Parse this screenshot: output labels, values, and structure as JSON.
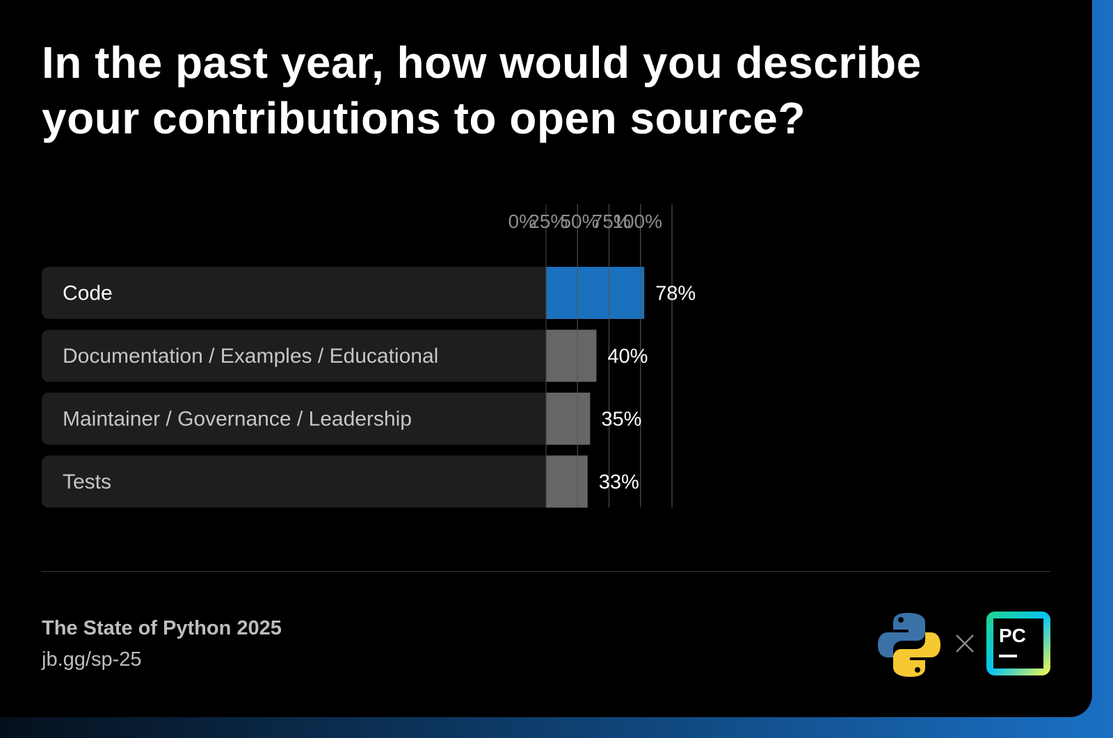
{
  "title": "In the past year, how would you describe your contributions to open source?",
  "footer": {
    "source_title": "The State of Python 2025",
    "link": "jb.gg/sp-25"
  },
  "logos": {
    "left_icon": "python-logo-icon",
    "separator_icon": "times-icon",
    "right_icon": "pycharm-logo-icon",
    "right_text": "PC"
  },
  "colors": {
    "background": "#000000",
    "highlight_bar": "#1a71bd",
    "default_bar": "#666666",
    "label_track": "#1e1e1e"
  },
  "chart_data": {
    "type": "bar",
    "orientation": "horizontal",
    "categories": [
      "Code",
      "Documentation / Examples / Educational",
      "Maintainer / Governance / Leadership",
      "Tests"
    ],
    "values": [
      78,
      40,
      35,
      33
    ],
    "value_labels": [
      "78%",
      "40%",
      "35%",
      "33%"
    ],
    "highlight_index": 0,
    "xticks": [
      "0%",
      "25%",
      "50%",
      "75%",
      "100%"
    ],
    "xtick_values": [
      0,
      25,
      50,
      75,
      100
    ],
    "xlim": [
      0,
      100
    ],
    "grid": true,
    "xlabel": "",
    "ylabel": ""
  }
}
